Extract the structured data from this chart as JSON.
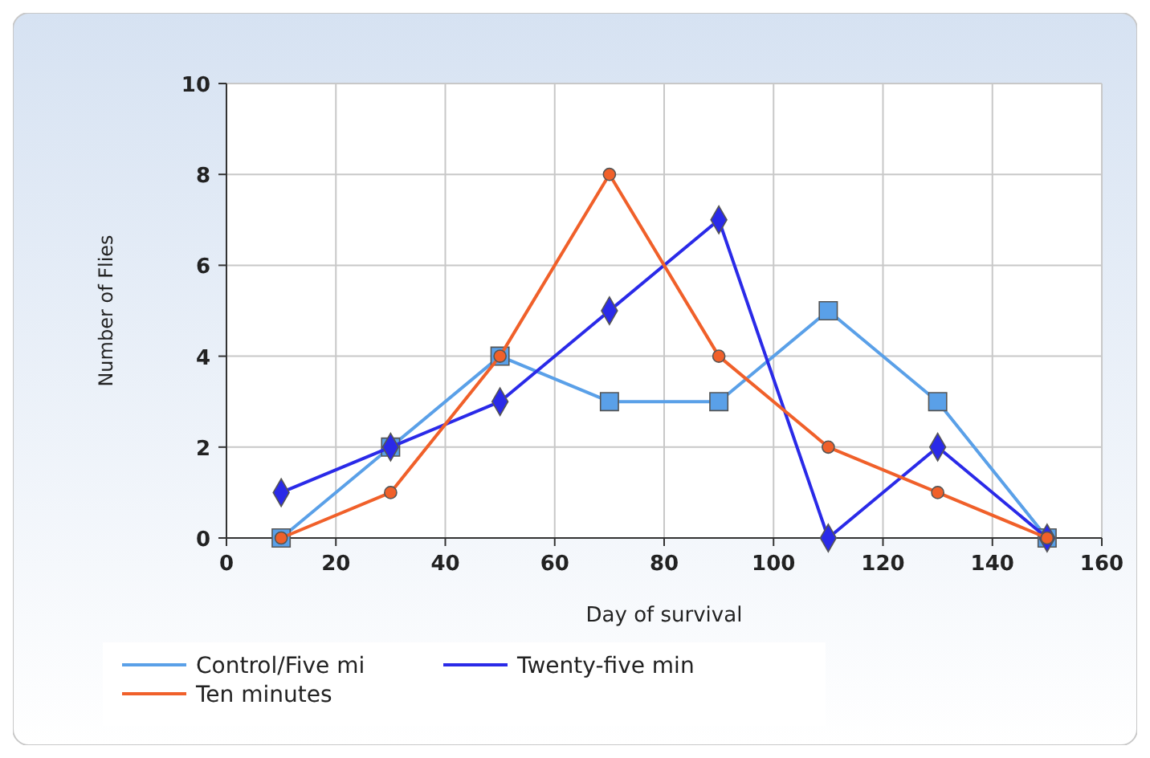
{
  "chart_data": {
    "type": "line",
    "xlabel": "Day of survival",
    "ylabel": "Number of Flies",
    "x": [
      10,
      30,
      50,
      70,
      90,
      110,
      130,
      150
    ],
    "series": [
      {
        "name": "Control/Five mi",
        "color": "#5aa0e8",
        "marker": "square",
        "values": [
          0,
          2,
          4,
          3,
          3,
          5,
          3,
          0
        ]
      },
      {
        "name": "Twenty-five min",
        "color": "#2a2ae8",
        "marker": "diamond",
        "values": [
          1,
          2,
          3,
          5,
          7,
          0,
          2,
          0
        ]
      },
      {
        "name": "Ten minutes",
        "color": "#f0602a",
        "marker": "circle",
        "values": [
          0,
          1,
          4,
          8,
          4,
          2,
          1,
          0
        ]
      }
    ],
    "xlim": [
      0,
      160
    ],
    "xticks": [
      0,
      20,
      40,
      60,
      80,
      100,
      120,
      140,
      160
    ],
    "ylim": [
      0,
      10
    ],
    "yticks": [
      0,
      2,
      4,
      6,
      8,
      10
    ],
    "grid": true,
    "legend": "bottom"
  }
}
